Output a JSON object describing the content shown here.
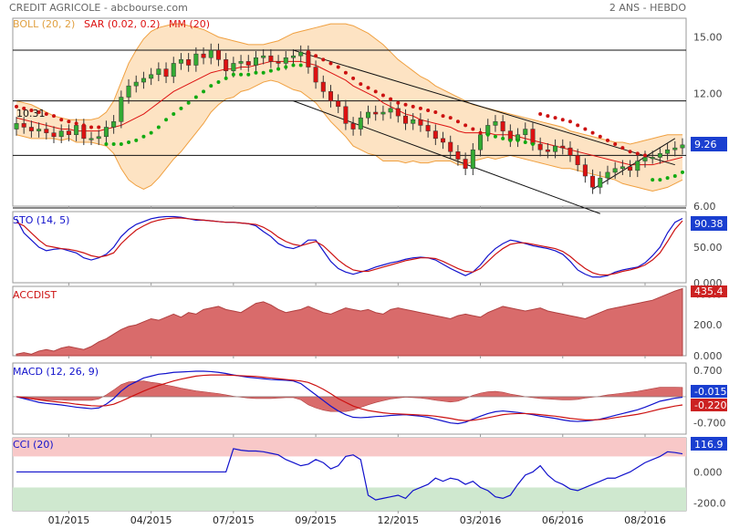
{
  "header": {
    "title": "CREDIT AGRICOLE - abcbourse.com",
    "period": "2 ANS - HEBDO"
  },
  "colors": {
    "up": "#33aa33",
    "down": "#dd1111",
    "boll_fill": "#fde3c3",
    "boll_line": "#f0a040",
    "mm": "#dd1111",
    "sar_up": "#11aa11",
    "sar_down": "#cc1111",
    "blue": "#1111cc",
    "red": "#cc1111",
    "accdist_fill": "#d96b6b",
    "cci_top": "#f8c8c8",
    "cci_bottom": "#cfe8cf"
  },
  "chart_data": [
    {
      "id": "price",
      "type": "candlestick",
      "legend": [
        "BOLL (20, 2)",
        "SAR (0.02, 0.2)",
        "MM (20)"
      ],
      "ylim": [
        6,
        16
      ],
      "y_ticks": [
        15,
        12,
        9,
        6
      ],
      "y_tick_labels": [
        "15.00",
        "12.00",
        "",
        "6.00"
      ],
      "horizontal_levels": [
        14.3,
        11.6,
        8.7,
        5.9
      ],
      "annotation": "10.31",
      "last_value": "9.26",
      "close": [
        10.4,
        10.2,
        10.0,
        10.1,
        9.9,
        9.7,
        10.0,
        9.8,
        10.3,
        9.6,
        9.6,
        9.7,
        10.2,
        10.5,
        11.8,
        12.4,
        12.6,
        12.8,
        13.0,
        13.3,
        12.9,
        13.6,
        13.8,
        13.5,
        14.1,
        13.9,
        14.3,
        13.8,
        13.2,
        13.6,
        13.7,
        13.5,
        13.9,
        14.0,
        13.7,
        13.6,
        13.9,
        14.0,
        14.2,
        13.4,
        12.6,
        12.1,
        11.6,
        11.3,
        10.4,
        10.1,
        10.7,
        11.0,
        10.9,
        11.0,
        11.2,
        10.8,
        10.4,
        10.6,
        10.3,
        10.0,
        9.6,
        9.4,
        8.9,
        8.5,
        8.0,
        9.0,
        9.8,
        10.3,
        10.5,
        10.0,
        9.5,
        9.8,
        10.1,
        9.3,
        9.0,
        8.9,
        9.2,
        9.1,
        8.7,
        8.2,
        7.6,
        7.0,
        7.5,
        7.8,
        8.0,
        8.1,
        7.9,
        8.4,
        8.6,
        8.6,
        8.8,
        9.0,
        9.1,
        9.26
      ],
      "bollinger": {
        "middle": [
          10.7,
          10.6,
          10.5,
          10.4,
          10.3,
          10.2,
          10.1,
          10.1,
          10.0,
          10.0,
          10.0,
          10.0,
          10.1,
          10.2,
          10.3,
          10.5,
          10.7,
          10.9,
          11.2,
          11.5,
          11.8,
          12.1,
          12.3,
          12.5,
          12.7,
          12.9,
          13.1,
          13.2,
          13.3,
          13.3,
          13.4,
          13.4,
          13.5,
          13.6,
          13.7,
          13.7,
          13.7,
          13.7,
          13.7,
          13.6,
          13.5,
          13.3,
          13.1,
          12.9,
          12.7,
          12.4,
          12.2,
          12.0,
          11.8,
          11.5,
          11.3,
          11.1,
          10.9,
          10.8,
          10.6,
          10.5,
          10.4,
          10.3,
          10.2,
          10.0,
          9.9,
          9.9,
          9.9,
          9.9,
          9.8,
          9.8,
          9.8,
          9.7,
          9.6,
          9.5,
          9.4,
          9.3,
          9.2,
          9.1,
          9.0,
          8.9,
          8.8,
          8.7,
          8.6,
          8.5,
          8.4,
          8.3,
          8.2,
          8.2,
          8.2,
          8.2,
          8.3,
          8.4,
          8.5,
          8.6
        ],
        "upper": [
          11.6,
          11.5,
          11.4,
          11.2,
          11.0,
          10.8,
          10.7,
          10.6,
          10.6,
          10.6,
          10.6,
          10.7,
          11.0,
          11.6,
          12.6,
          13.6,
          14.3,
          14.9,
          15.3,
          15.5,
          15.6,
          15.7,
          15.7,
          15.6,
          15.5,
          15.4,
          15.2,
          15.0,
          14.9,
          14.8,
          14.7,
          14.6,
          14.6,
          14.6,
          14.7,
          14.8,
          15.0,
          15.2,
          15.3,
          15.4,
          15.5,
          15.6,
          15.7,
          15.7,
          15.7,
          15.6,
          15.4,
          15.2,
          14.9,
          14.6,
          14.2,
          13.8,
          13.5,
          13.2,
          12.9,
          12.7,
          12.4,
          12.2,
          12.0,
          11.8,
          11.6,
          11.4,
          11.3,
          11.2,
          11.1,
          11.0,
          10.9,
          10.8,
          10.7,
          10.6,
          10.5,
          10.4,
          10.3,
          10.2,
          10.0,
          9.9,
          9.8,
          9.7,
          9.6,
          9.5,
          9.4,
          9.4,
          9.3,
          9.4,
          9.5,
          9.6,
          9.7,
          9.8,
          9.8,
          9.8
        ],
        "lower": [
          9.8,
          9.7,
          9.6,
          9.6,
          9.6,
          9.6,
          9.5,
          9.6,
          9.4,
          9.4,
          9.4,
          9.3,
          9.2,
          8.8,
          8.0,
          7.4,
          7.1,
          6.9,
          7.1,
          7.5,
          8.0,
          8.5,
          8.9,
          9.4,
          9.9,
          10.4,
          11.0,
          11.4,
          11.7,
          11.8,
          12.1,
          12.2,
          12.4,
          12.6,
          12.7,
          12.6,
          12.4,
          12.2,
          12.1,
          11.8,
          11.5,
          11.0,
          10.5,
          10.1,
          9.7,
          9.2,
          9.0,
          8.8,
          8.7,
          8.4,
          8.4,
          8.4,
          8.3,
          8.4,
          8.3,
          8.3,
          8.4,
          8.4,
          8.4,
          8.2,
          8.2,
          8.4,
          8.5,
          8.6,
          8.5,
          8.6,
          8.7,
          8.6,
          8.5,
          8.4,
          8.3,
          8.2,
          8.1,
          8.0,
          8.0,
          7.9,
          7.8,
          7.7,
          7.6,
          7.5,
          7.4,
          7.2,
          7.1,
          7.0,
          6.9,
          6.8,
          6.9,
          7.0,
          7.2,
          7.4
        ]
      },
      "sar": [
        11.3,
        11.2,
        11.1,
        11.0,
        10.9,
        10.8,
        10.6,
        10.5,
        10.4,
        10.3,
        10.2,
        10.2,
        9.3,
        9.3,
        9.3,
        9.4,
        9.5,
        9.7,
        9.9,
        10.2,
        10.6,
        10.9,
        11.2,
        11.5,
        11.8,
        12.1,
        12.4,
        12.6,
        12.8,
        13.0,
        13.0,
        13.0,
        13.1,
        13.1,
        13.2,
        13.3,
        13.4,
        13.5,
        13.5,
        14.2,
        14.0,
        13.8,
        13.6,
        13.4,
        13.1,
        12.8,
        12.5,
        12.3,
        12.1,
        11.9,
        11.7,
        11.5,
        11.4,
        11.3,
        11.2,
        11.1,
        11.0,
        10.8,
        10.7,
        10.5,
        10.3,
        10.1,
        9.9,
        9.8,
        9.7,
        9.6,
        9.5,
        9.5,
        9.4,
        9.3,
        10.9,
        10.8,
        10.7,
        10.6,
        10.5,
        10.3,
        10.1,
        9.9,
        9.7,
        9.5,
        9.3,
        9.1,
        8.9,
        8.8,
        8.7,
        7.4,
        7.4,
        7.5,
        7.6,
        7.8
      ]
    },
    {
      "id": "sto",
      "type": "line",
      "legend": "STO (14, 5)",
      "ylim": [
        0,
        100
      ],
      "y_ticks": [
        0,
        50,
        100
      ],
      "y_tick_labels": [
        "0.000",
        "50.00",
        ""
      ],
      "last_value": "90.38",
      "series": [
        {
          "values": [
            90,
            70,
            60,
            50,
            45,
            47,
            48,
            45,
            42,
            35,
            32,
            35,
            40,
            50,
            65,
            75,
            82,
            86,
            90,
            92,
            93,
            93,
            92,
            90,
            88,
            88,
            87,
            86,
            85,
            85,
            84,
            83,
            80,
            72,
            65,
            55,
            50,
            48,
            52,
            60,
            60,
            45,
            30,
            20,
            15,
            12,
            15,
            18,
            22,
            25,
            28,
            30,
            33,
            35,
            36,
            35,
            32,
            26,
            20,
            15,
            10,
            15,
            25,
            38,
            48,
            55,
            60,
            58,
            55,
            52,
            50,
            48,
            45,
            40,
            30,
            18,
            12,
            8,
            8,
            10,
            15,
            18,
            20,
            22,
            28,
            38,
            50,
            70,
            85,
            90.38
          ]
        },
        {
          "values": [
            85,
            80,
            70,
            60,
            52,
            50,
            48,
            47,
            45,
            42,
            38,
            36,
            38,
            42,
            55,
            65,
            74,
            80,
            85,
            88,
            90,
            91,
            91,
            90,
            89,
            88,
            87,
            86,
            85,
            85,
            84,
            83,
            82,
            78,
            72,
            64,
            58,
            54,
            52,
            55,
            58,
            52,
            42,
            32,
            24,
            18,
            16,
            16,
            19,
            22,
            25,
            28,
            31,
            33,
            35,
            35,
            34,
            30,
            25,
            20,
            16,
            15,
            20,
            30,
            40,
            48,
            54,
            56,
            56,
            54,
            52,
            50,
            48,
            44,
            37,
            28,
            20,
            14,
            11,
            11,
            13,
            16,
            18,
            21,
            25,
            32,
            42,
            58,
            75,
            87
          ]
        }
      ]
    },
    {
      "id": "accdist",
      "type": "area",
      "legend": "ACCDIST",
      "ylim": [
        0,
        450
      ],
      "y_ticks": [
        0,
        200,
        400
      ],
      "y_tick_labels": [
        "0.000",
        "200.0",
        "400.0"
      ],
      "last_value": "435.4",
      "values": [
        10,
        20,
        10,
        30,
        40,
        30,
        50,
        60,
        50,
        40,
        60,
        90,
        110,
        140,
        170,
        190,
        200,
        220,
        240,
        230,
        250,
        270,
        250,
        280,
        270,
        300,
        310,
        320,
        300,
        290,
        280,
        310,
        340,
        350,
        330,
        300,
        280,
        290,
        300,
        320,
        300,
        280,
        270,
        290,
        310,
        300,
        290,
        300,
        280,
        270,
        300,
        310,
        300,
        290,
        280,
        270,
        260,
        250,
        240,
        260,
        270,
        260,
        250,
        280,
        300,
        320,
        310,
        300,
        290,
        300,
        310,
        290,
        280,
        270,
        260,
        250,
        240,
        260,
        280,
        300,
        310,
        320,
        330,
        340,
        350,
        360,
        380,
        400,
        420,
        435.4
      ]
    },
    {
      "id": "macd",
      "type": "line",
      "legend": "MACD (12, 26, 9)",
      "ylim": [
        -1.0,
        0.9
      ],
      "y_ticks": [
        0.7,
        -0.7
      ],
      "y_tick_labels": [
        "0.700",
        "-0.700"
      ],
      "last_values": [
        "-0.015",
        "-0.220"
      ],
      "series": [
        {
          "values": [
            0.0,
            -0.05,
            -0.1,
            -0.15,
            -0.18,
            -0.2,
            -0.22,
            -0.25,
            -0.28,
            -0.3,
            -0.32,
            -0.3,
            -0.2,
            -0.05,
            0.15,
            0.3,
            0.4,
            0.5,
            0.55,
            0.6,
            0.62,
            0.65,
            0.66,
            0.67,
            0.68,
            0.68,
            0.67,
            0.65,
            0.62,
            0.58,
            0.55,
            0.52,
            0.5,
            0.48,
            0.46,
            0.45,
            0.44,
            0.42,
            0.35,
            0.2,
            0.05,
            -0.1,
            -0.25,
            -0.38,
            -0.48,
            -0.55,
            -0.56,
            -0.55,
            -0.53,
            -0.52,
            -0.5,
            -0.49,
            -0.48,
            -0.5,
            -0.52,
            -0.55,
            -0.6,
            -0.65,
            -0.7,
            -0.72,
            -0.68,
            -0.6,
            -0.52,
            -0.45,
            -0.4,
            -0.38,
            -0.4,
            -0.42,
            -0.45,
            -0.48,
            -0.52,
            -0.55,
            -0.58,
            -0.62,
            -0.65,
            -0.66,
            -0.65,
            -0.63,
            -0.6,
            -0.55,
            -0.5,
            -0.45,
            -0.4,
            -0.35,
            -0.28,
            -0.2,
            -0.12,
            -0.08,
            -0.04,
            -0.015
          ]
        },
        {
          "values": [
            0.0,
            -0.02,
            -0.05,
            -0.08,
            -0.11,
            -0.13,
            -0.15,
            -0.17,
            -0.2,
            -0.22,
            -0.24,
            -0.25,
            -0.24,
            -0.2,
            -0.12,
            -0.03,
            0.06,
            0.15,
            0.23,
            0.3,
            0.36,
            0.42,
            0.47,
            0.51,
            0.55,
            0.57,
            0.58,
            0.58,
            0.58,
            0.57,
            0.56,
            0.55,
            0.54,
            0.52,
            0.5,
            0.48,
            0.46,
            0.44,
            0.42,
            0.38,
            0.3,
            0.2,
            0.08,
            -0.05,
            -0.15,
            -0.25,
            -0.32,
            -0.37,
            -0.4,
            -0.43,
            -0.45,
            -0.46,
            -0.47,
            -0.48,
            -0.49,
            -0.5,
            -0.52,
            -0.55,
            -0.58,
            -0.62,
            -0.64,
            -0.63,
            -0.6,
            -0.56,
            -0.52,
            -0.48,
            -0.46,
            -0.45,
            -0.45,
            -0.46,
            -0.48,
            -0.5,
            -0.52,
            -0.55,
            -0.58,
            -0.6,
            -0.62,
            -0.62,
            -0.61,
            -0.59,
            -0.56,
            -0.53,
            -0.5,
            -0.47,
            -0.43,
            -0.38,
            -0.33,
            -0.29,
            -0.25,
            -0.22
          ]
        }
      ]
    },
    {
      "id": "cci",
      "type": "line",
      "legend": "CCI (20)",
      "ylim": [
        -250,
        220
      ],
      "y_ticks": [
        0,
        -200
      ],
      "y_tick_labels": [
        "0.000",
        "-200.0"
      ],
      "bands": [
        100,
        -100
      ],
      "last_value": "116.9",
      "values": [
        0,
        0,
        0,
        0,
        0,
        0,
        0,
        0,
        0,
        0,
        0,
        0,
        0,
        0,
        0,
        0,
        0,
        0,
        0,
        0,
        0,
        0,
        0,
        0,
        0,
        0,
        0,
        0,
        0,
        150,
        140,
        135,
        135,
        130,
        120,
        110,
        80,
        60,
        40,
        50,
        80,
        60,
        20,
        40,
        100,
        110,
        80,
        -150,
        -180,
        -170,
        -160,
        -150,
        -170,
        -120,
        -100,
        -80,
        -40,
        -60,
        -40,
        -50,
        -80,
        -60,
        -100,
        -120,
        -160,
        -170,
        -150,
        -80,
        -20,
        0,
        40,
        -20,
        -60,
        -80,
        -110,
        -120,
        -100,
        -80,
        -60,
        -40,
        -40,
        -20,
        0,
        30,
        60,
        80,
        100,
        130,
        125,
        116.9
      ]
    }
  ],
  "x_axis": {
    "labels": [
      "01/2015",
      "04/2015",
      "07/2015",
      "09/2015",
      "12/2015",
      "03/2016",
      "06/2016",
      "08/2016"
    ]
  }
}
